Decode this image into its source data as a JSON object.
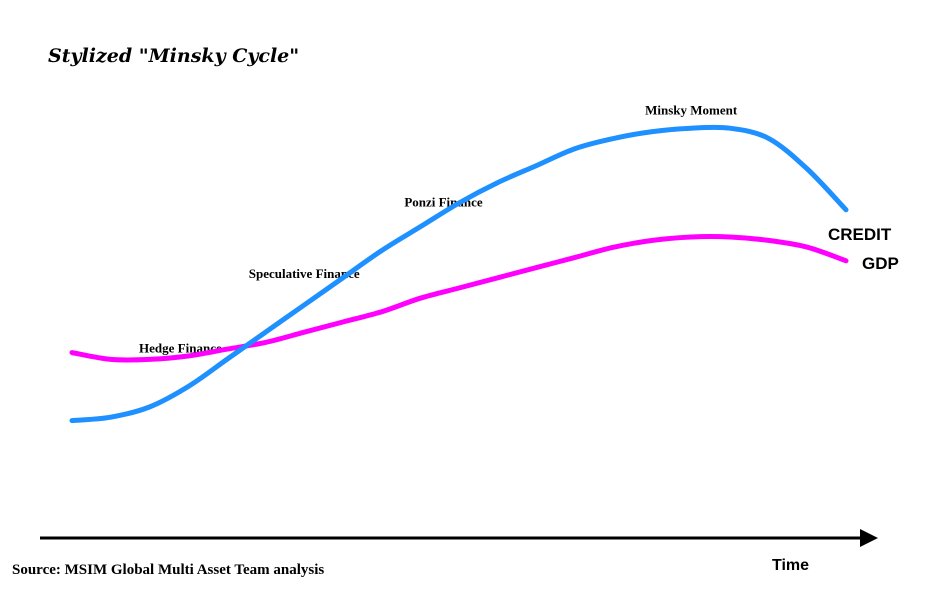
{
  "chart_data": {
    "type": "line",
    "title": "Stylized \"Minsky Cycle\"",
    "xlabel": "Time",
    "ylabel": "",
    "x": [
      0,
      5,
      10,
      15,
      20,
      25,
      30,
      35,
      40,
      45,
      50,
      55,
      60,
      65,
      70,
      75,
      80,
      85,
      90,
      95,
      100
    ],
    "xlim": [
      0,
      100
    ],
    "ylim": [
      0,
      100
    ],
    "grid": false,
    "legend": "none",
    "series": [
      {
        "name": "CREDIT",
        "color": "#1E90FF",
        "values": [
          16,
          17,
          20,
          26,
          34,
          42,
          50,
          58,
          66,
          73,
          80,
          86,
          91,
          96,
          99,
          101,
          102,
          102,
          99,
          90,
          78
        ]
      },
      {
        "name": "GDP",
        "color": "#FF00FF",
        "values": [
          36,
          34,
          34,
          35,
          37,
          39,
          42,
          45,
          48,
          52,
          55,
          58,
          61,
          64,
          67,
          69,
          70,
          70,
          69,
          67,
          63
        ]
      }
    ],
    "annotations": [
      {
        "text": "Hedge Finance",
        "x": 14,
        "y": 36
      },
      {
        "text": "Speculative Finance",
        "x": 30,
        "y": 58
      },
      {
        "text": "Ponzi Finance",
        "x": 48,
        "y": 79
      },
      {
        "text": "Minsky Moment",
        "x": 80,
        "y": 106
      }
    ],
    "source": "Source: MSIM Global Multi Asset Team analysis"
  }
}
